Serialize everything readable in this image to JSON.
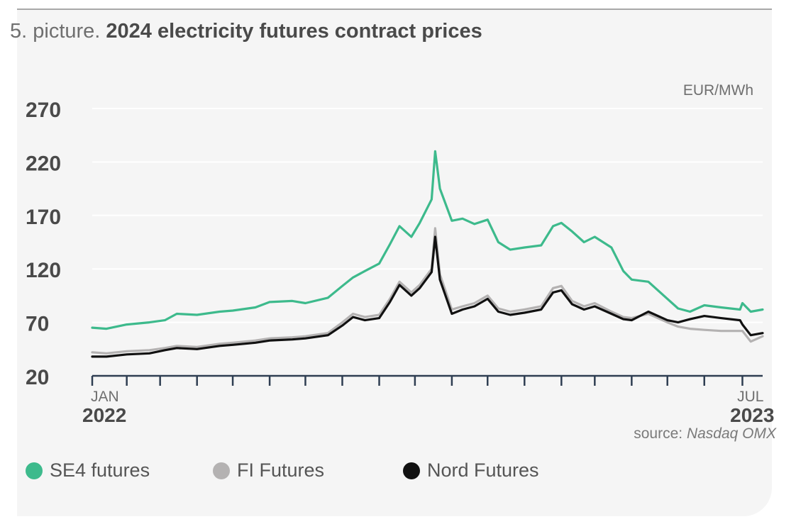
{
  "title": {
    "prefix": "5. picture.",
    "main": "2024 electricity futures contract prices"
  },
  "source": {
    "label": "source:",
    "name": "Nasdaq OMX"
  },
  "colors": {
    "se4": "#3dba8c",
    "fi": "#b4b2b2",
    "nord": "#111111",
    "grid": "#ffffff",
    "axis": "#2f3e52"
  },
  "chart_data": {
    "type": "line",
    "title": "2024 electricity futures contract prices",
    "unit_label": "EUR/MWh",
    "ylim": [
      20,
      270
    ],
    "yticks": [
      20,
      70,
      120,
      170,
      220,
      270
    ],
    "xlim": [
      "2022-01-03",
      "2023-07-20"
    ],
    "x_tick_labels": [
      {
        "date": "2022-01-03",
        "month": "JAN",
        "year": "2022"
      },
      {
        "date": "2023-07-03",
        "month": "JUL",
        "year": "2023"
      }
    ],
    "month_ticks": [
      "2022-01-03",
      "2022-02-01",
      "2022-03-01",
      "2022-04-01",
      "2022-05-01",
      "2022-06-01",
      "2022-07-01",
      "2022-08-01",
      "2022-09-01",
      "2022-10-01",
      "2022-11-01",
      "2022-12-01",
      "2023-01-01",
      "2023-02-01",
      "2023-03-01",
      "2023-04-01",
      "2023-05-01",
      "2023-06-01",
      "2023-07-03"
    ],
    "grid": true,
    "legend_position": "bottom",
    "series": [
      {
        "name": "SE4 futures",
        "color": "#3dba8c",
        "points": [
          [
            "2022-01-03",
            65
          ],
          [
            "2022-01-15",
            64
          ],
          [
            "2022-02-01",
            68
          ],
          [
            "2022-02-20",
            70
          ],
          [
            "2022-03-05",
            72
          ],
          [
            "2022-03-15",
            78
          ],
          [
            "2022-04-01",
            77
          ],
          [
            "2022-04-20",
            80
          ],
          [
            "2022-05-01",
            81
          ],
          [
            "2022-05-20",
            84
          ],
          [
            "2022-06-01",
            89
          ],
          [
            "2022-06-20",
            90
          ],
          [
            "2022-07-01",
            88
          ],
          [
            "2022-07-20",
            93
          ],
          [
            "2022-08-01",
            104
          ],
          [
            "2022-08-10",
            112
          ],
          [
            "2022-08-20",
            118
          ],
          [
            "2022-09-01",
            125
          ],
          [
            "2022-09-10",
            143
          ],
          [
            "2022-09-18",
            160
          ],
          [
            "2022-09-28",
            150
          ],
          [
            "2022-10-05",
            163
          ],
          [
            "2022-10-15",
            185
          ],
          [
            "2022-10-18",
            230
          ],
          [
            "2022-10-22",
            195
          ],
          [
            "2022-11-01",
            165
          ],
          [
            "2022-11-10",
            167
          ],
          [
            "2022-11-20",
            162
          ],
          [
            "2022-12-01",
            166
          ],
          [
            "2022-12-10",
            145
          ],
          [
            "2022-12-20",
            138
          ],
          [
            "2023-01-01",
            140
          ],
          [
            "2023-01-15",
            142
          ],
          [
            "2023-01-25",
            160
          ],
          [
            "2023-02-01",
            163
          ],
          [
            "2023-02-10",
            155
          ],
          [
            "2023-02-20",
            145
          ],
          [
            "2023-03-01",
            150
          ],
          [
            "2023-03-15",
            140
          ],
          [
            "2023-03-25",
            118
          ],
          [
            "2023-04-01",
            110
          ],
          [
            "2023-04-15",
            108
          ],
          [
            "2023-05-01",
            92
          ],
          [
            "2023-05-10",
            83
          ],
          [
            "2023-05-20",
            80
          ],
          [
            "2023-06-01",
            86
          ],
          [
            "2023-06-15",
            84
          ],
          [
            "2023-07-01",
            82
          ],
          [
            "2023-07-03",
            88
          ],
          [
            "2023-07-10",
            80
          ],
          [
            "2023-07-20",
            82
          ]
        ]
      },
      {
        "name": "FI Futures",
        "color": "#b4b2b2",
        "points": [
          [
            "2022-01-03",
            42
          ],
          [
            "2022-01-15",
            41
          ],
          [
            "2022-02-01",
            43
          ],
          [
            "2022-02-20",
            44
          ],
          [
            "2022-03-05",
            46
          ],
          [
            "2022-03-15",
            48
          ],
          [
            "2022-04-01",
            47
          ],
          [
            "2022-04-20",
            50
          ],
          [
            "2022-05-01",
            51
          ],
          [
            "2022-05-20",
            53
          ],
          [
            "2022-06-01",
            55
          ],
          [
            "2022-06-20",
            56
          ],
          [
            "2022-07-01",
            57
          ],
          [
            "2022-07-20",
            60
          ],
          [
            "2022-08-01",
            70
          ],
          [
            "2022-08-10",
            78
          ],
          [
            "2022-08-20",
            75
          ],
          [
            "2022-09-01",
            77
          ],
          [
            "2022-09-10",
            92
          ],
          [
            "2022-09-18",
            108
          ],
          [
            "2022-09-28",
            98
          ],
          [
            "2022-10-05",
            105
          ],
          [
            "2022-10-15",
            120
          ],
          [
            "2022-10-18",
            158
          ],
          [
            "2022-10-22",
            115
          ],
          [
            "2022-11-01",
            82
          ],
          [
            "2022-11-10",
            85
          ],
          [
            "2022-11-20",
            88
          ],
          [
            "2022-12-01",
            95
          ],
          [
            "2022-12-10",
            83
          ],
          [
            "2022-12-20",
            80
          ],
          [
            "2023-01-01",
            82
          ],
          [
            "2023-01-15",
            85
          ],
          [
            "2023-01-25",
            102
          ],
          [
            "2023-02-01",
            104
          ],
          [
            "2023-02-10",
            90
          ],
          [
            "2023-02-20",
            85
          ],
          [
            "2023-03-01",
            88
          ],
          [
            "2023-03-15",
            80
          ],
          [
            "2023-03-25",
            75
          ],
          [
            "2023-04-01",
            74
          ],
          [
            "2023-04-15",
            78
          ],
          [
            "2023-05-01",
            70
          ],
          [
            "2023-05-10",
            66
          ],
          [
            "2023-05-20",
            64
          ],
          [
            "2023-06-01",
            63
          ],
          [
            "2023-06-15",
            62
          ],
          [
            "2023-07-01",
            62
          ],
          [
            "2023-07-03",
            62
          ],
          [
            "2023-07-10",
            52
          ],
          [
            "2023-07-20",
            57
          ]
        ]
      },
      {
        "name": "Nord Futures",
        "color": "#111111",
        "points": [
          [
            "2022-01-03",
            38
          ],
          [
            "2022-01-15",
            38
          ],
          [
            "2022-02-01",
            40
          ],
          [
            "2022-02-20",
            41
          ],
          [
            "2022-03-05",
            44
          ],
          [
            "2022-03-15",
            46
          ],
          [
            "2022-04-01",
            45
          ],
          [
            "2022-04-20",
            48
          ],
          [
            "2022-05-01",
            49
          ],
          [
            "2022-05-20",
            51
          ],
          [
            "2022-06-01",
            53
          ],
          [
            "2022-06-20",
            54
          ],
          [
            "2022-07-01",
            55
          ],
          [
            "2022-07-20",
            58
          ],
          [
            "2022-08-01",
            67
          ],
          [
            "2022-08-10",
            75
          ],
          [
            "2022-08-20",
            72
          ],
          [
            "2022-09-01",
            74
          ],
          [
            "2022-09-10",
            89
          ],
          [
            "2022-09-18",
            105
          ],
          [
            "2022-09-28",
            95
          ],
          [
            "2022-10-05",
            102
          ],
          [
            "2022-10-15",
            117
          ],
          [
            "2022-10-18",
            150
          ],
          [
            "2022-10-22",
            110
          ],
          [
            "2022-11-01",
            78
          ],
          [
            "2022-11-10",
            82
          ],
          [
            "2022-11-20",
            85
          ],
          [
            "2022-12-01",
            92
          ],
          [
            "2022-12-10",
            80
          ],
          [
            "2022-12-20",
            77
          ],
          [
            "2023-01-01",
            79
          ],
          [
            "2023-01-15",
            82
          ],
          [
            "2023-01-25",
            98
          ],
          [
            "2023-02-01",
            100
          ],
          [
            "2023-02-10",
            87
          ],
          [
            "2023-02-20",
            82
          ],
          [
            "2023-03-01",
            85
          ],
          [
            "2023-03-15",
            78
          ],
          [
            "2023-03-25",
            73
          ],
          [
            "2023-04-01",
            72
          ],
          [
            "2023-04-15",
            80
          ],
          [
            "2023-05-01",
            72
          ],
          [
            "2023-05-10",
            70
          ],
          [
            "2023-05-20",
            73
          ],
          [
            "2023-06-01",
            76
          ],
          [
            "2023-06-15",
            74
          ],
          [
            "2023-07-01",
            72
          ],
          [
            "2023-07-03",
            68
          ],
          [
            "2023-07-10",
            58
          ],
          [
            "2023-07-20",
            60
          ]
        ]
      }
    ]
  }
}
